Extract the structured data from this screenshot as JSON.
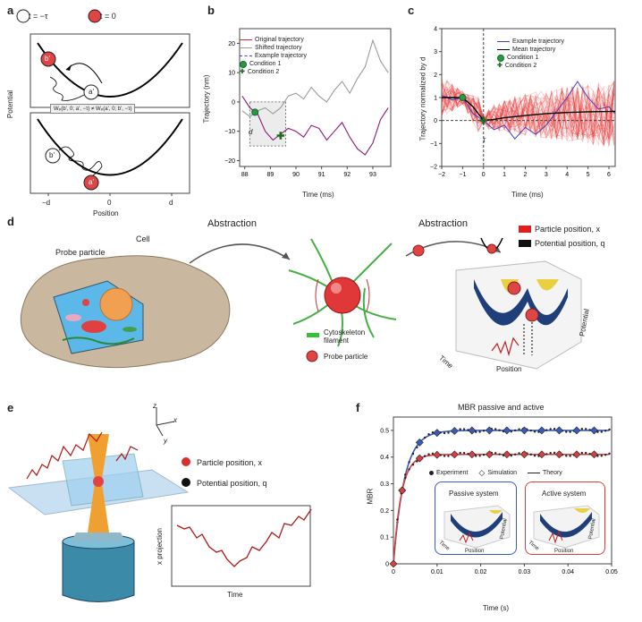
{
  "panels": {
    "a": {
      "letter": "a",
      "t_minus": "t = −τ",
      "t_zero": "t = 0",
      "ylabel": "Potential",
      "xlabel": "Position",
      "xticks": [
        "−d",
        "0",
        "d"
      ],
      "node_b": "b'",
      "node_a": "a'",
      "middle_formula": "Wₚ(b', 0; a', −τ) ≠ Wₚ(a', 0; b', −τ)"
    },
    "b": {
      "letter": "b",
      "ylabel": "Trajectory (nm)",
      "xlabel": "Time (ms)",
      "legend": [
        "Original trajectory",
        "Shifted trajectory",
        "Example trajectory",
        "Condition 1",
        "Condition 2"
      ],
      "d_label": "d"
    },
    "c": {
      "letter": "c",
      "ylabel": "Trajectory normalized by d",
      "xlabel": "Time (ms)",
      "legend": [
        "Example trajectory",
        "Mean trajectory",
        "Condition 1",
        "Condition 2"
      ],
      "tau_label": "τ"
    },
    "d": {
      "letter": "d",
      "abstraction_1": "Abstraction",
      "abstraction_2": "Abstraction",
      "probe_particle": "Probe particle",
      "cell": "Cell",
      "cytoskeleton": "Cytoskeleton filament",
      "probe_legend": "Probe particle",
      "particle_position": "Particle position, x",
      "potential_position": "Potential position, q",
      "axis_potential": "Potential",
      "axis_time": "Time",
      "axis_position": "Position"
    },
    "e": {
      "letter": "e",
      "particle_position": "Particle position, x",
      "potential_position": "Potential position, q",
      "axis_z": "z",
      "axis_x": "x",
      "axis_y": "y",
      "inset_ylabel": "x projection",
      "inset_xlabel": "Time"
    },
    "f": {
      "letter": "f",
      "title": "MBR passive and active",
      "ylabel": "MBR",
      "xlabel": "Time (s)",
      "legend": [
        "Experiment",
        "Simulation",
        "Theory"
      ],
      "passive_label": "Passive system",
      "active_label": "Active system",
      "inset_axis_potential": "Potential",
      "inset_axis_time": "Time",
      "inset_axis_position": "Position"
    }
  },
  "chart_data": [
    {
      "type": "line",
      "id": "b",
      "x_ticks": [
        "88",
        "89",
        "90",
        "91",
        "92",
        "93"
      ],
      "y_ticks": [
        "20",
        "10",
        "0",
        "−10",
        "−20"
      ],
      "xlim": [
        87.8,
        93.7
      ],
      "ylim": [
        -22,
        25
      ],
      "series": [
        {
          "name": "Original trajectory",
          "color": "#8b1a7a",
          "x": [
            87.9,
            88.2,
            88.5,
            88.8,
            89.1,
            89.4,
            89.7,
            90.0,
            90.3,
            90.6,
            90.9,
            91.2,
            91.5,
            91.8,
            92.1,
            92.4,
            92.7,
            93.0,
            93.3,
            93.6
          ],
          "y": [
            2,
            -2,
            -4,
            -10,
            -13,
            -11,
            -9,
            -10,
            -12,
            -8,
            -9,
            -13,
            -10,
            -7,
            -12,
            -16,
            -18,
            -14,
            -6,
            -2
          ]
        },
        {
          "name": "Shifted trajectory",
          "color": "#9a9a9a",
          "x": [
            87.9,
            88.2,
            88.5,
            88.8,
            89.1,
            89.4,
            89.7,
            90.0,
            90.3,
            90.6,
            90.9,
            91.2,
            91.5,
            91.8,
            92.1,
            92.4,
            92.7,
            93.0,
            93.3,
            93.6
          ],
          "y": [
            -3,
            -5,
            -3,
            -2,
            -4,
            -2,
            2,
            3,
            1,
            5,
            2,
            0,
            4,
            7,
            3,
            8,
            12,
            21,
            14,
            10
          ]
        }
      ],
      "conditions": [
        {
          "name": "Condition 1",
          "x": 88.4,
          "y": -3.5
        },
        {
          "name": "Condition 2",
          "x": 89.4,
          "y": -11.5
        }
      ]
    },
    {
      "type": "line",
      "id": "c",
      "x_ticks": [
        "−2",
        "−1",
        "0",
        "1",
        "2",
        "3",
        "4",
        "5",
        "6"
      ],
      "y_ticks": [
        "4",
        "3",
        "2",
        "1",
        "0",
        "−1",
        "−2"
      ],
      "xlim": [
        -2,
        6.3
      ],
      "ylim": [
        -2,
        4
      ],
      "series": [
        {
          "name": "Mean trajectory",
          "color": "#000000",
          "x": [
            -2,
            -1.5,
            -1,
            -0.5,
            0,
            0.5,
            1,
            2,
            3,
            4,
            5,
            6.3
          ],
          "y": [
            1.0,
            1.0,
            1.0,
            0.6,
            0.0,
            0.05,
            0.12,
            0.22,
            0.3,
            0.35,
            0.38,
            0.4
          ]
        },
        {
          "name": "Example trajectory",
          "color": "#4040c0",
          "x": [
            -2,
            -1.5,
            -1,
            -0.5,
            0,
            0.5,
            1,
            1.5,
            2,
            2.5,
            3,
            3.5,
            4,
            4.5,
            5,
            5.5,
            6,
            6.3
          ],
          "y": [
            1.1,
            0.9,
            1.0,
            0.3,
            0.0,
            -0.4,
            -0.2,
            -0.8,
            -0.3,
            -0.6,
            -0.2,
            0.4,
            1.0,
            1.7,
            1.0,
            0.5,
            0.6,
            0.3
          ]
        }
      ],
      "conditions": [
        {
          "name": "Condition 1",
          "x": -1,
          "y": 1
        },
        {
          "name": "Condition 2",
          "x": 0,
          "y": 0
        }
      ]
    },
    {
      "type": "scatter",
      "id": "f",
      "x_ticks": [
        "0",
        "0.01",
        "0.02",
        "0.03",
        "0.04",
        "0.05"
      ],
      "y_ticks": [
        "0.5",
        "0.4",
        "0.3",
        "0.2",
        "0.1",
        "0"
      ],
      "xlim": [
        0,
        0.05
      ],
      "ylim": [
        0,
        0.55
      ],
      "series": [
        {
          "name": "Passive theory",
          "color": "#3b5bb8",
          "plateau": 0.5
        },
        {
          "name": "Active theory",
          "color": "#d64040",
          "plateau": 0.41
        }
      ]
    }
  ]
}
